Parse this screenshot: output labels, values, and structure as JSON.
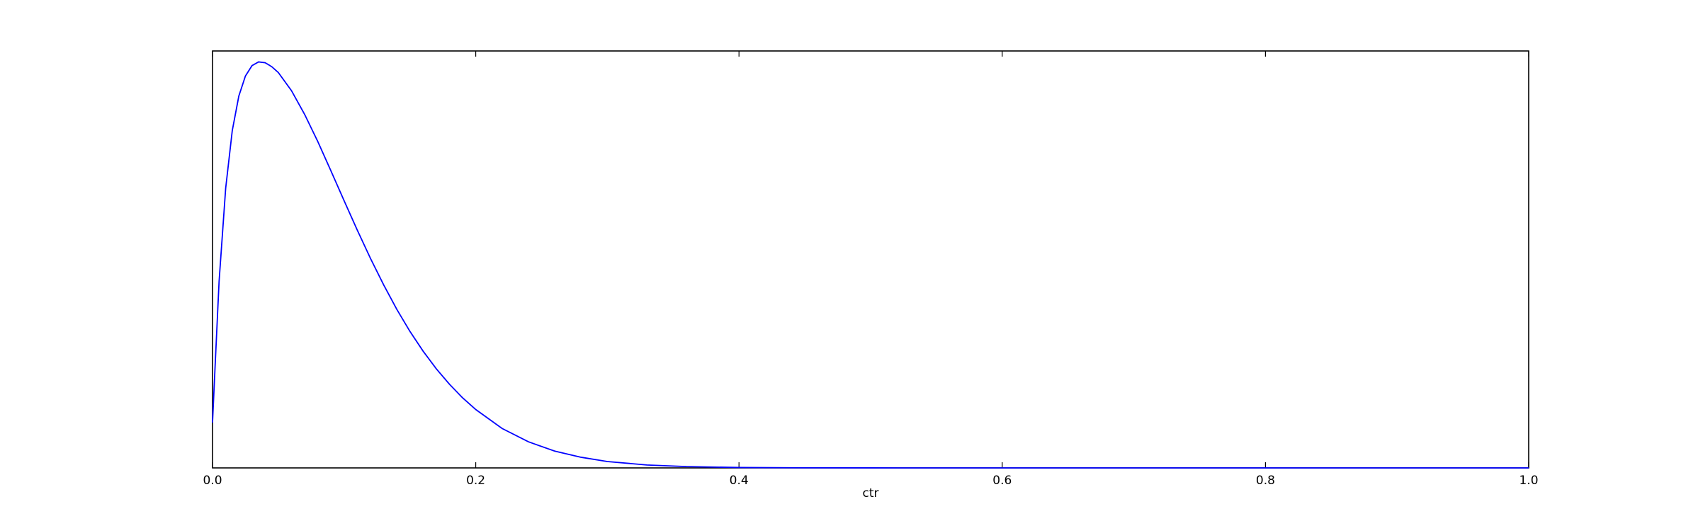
{
  "chart_data": {
    "type": "line",
    "title": "",
    "xlabel": "ctr",
    "ylabel": "",
    "xlim": [
      0.0,
      1.0
    ],
    "ylim": [
      0,
      15.64
    ],
    "x_ticks": [
      "0.0",
      "0.2",
      "0.4",
      "0.6",
      "0.8",
      "1.0"
    ],
    "y_ticks": [],
    "grid": false,
    "legend": "none",
    "series": [
      {
        "color": "#0000ff",
        "x": [
          0.0,
          0.002,
          0.005,
          0.01,
          0.015,
          0.02,
          0.025,
          0.03,
          0.035,
          0.04,
          0.045,
          0.05,
          0.06,
          0.07,
          0.08,
          0.09,
          0.1,
          0.11,
          0.12,
          0.13,
          0.14,
          0.15,
          0.16,
          0.17,
          0.18,
          0.19,
          0.2,
          0.22,
          0.24,
          0.26,
          0.28,
          0.3,
          0.33,
          0.36,
          0.4,
          0.45,
          0.5,
          0.6,
          0.7,
          0.8,
          0.9,
          1.0
        ],
        "values": [
          1.7,
          3.85,
          7.0,
          10.49,
          12.65,
          13.95,
          14.7,
          15.09,
          15.23,
          15.2,
          15.05,
          14.83,
          14.15,
          13.26,
          12.24,
          11.14,
          10.02,
          8.92,
          7.86,
          6.87,
          5.95,
          5.12,
          4.38,
          3.72,
          3.14,
          2.63,
          2.19,
          1.48,
          0.98,
          0.63,
          0.4,
          0.24,
          0.11,
          0.05,
          0.015,
          0.004,
          0.001,
          0.0,
          0.0,
          0.0,
          0.0,
          0.0
        ]
      }
    ]
  }
}
